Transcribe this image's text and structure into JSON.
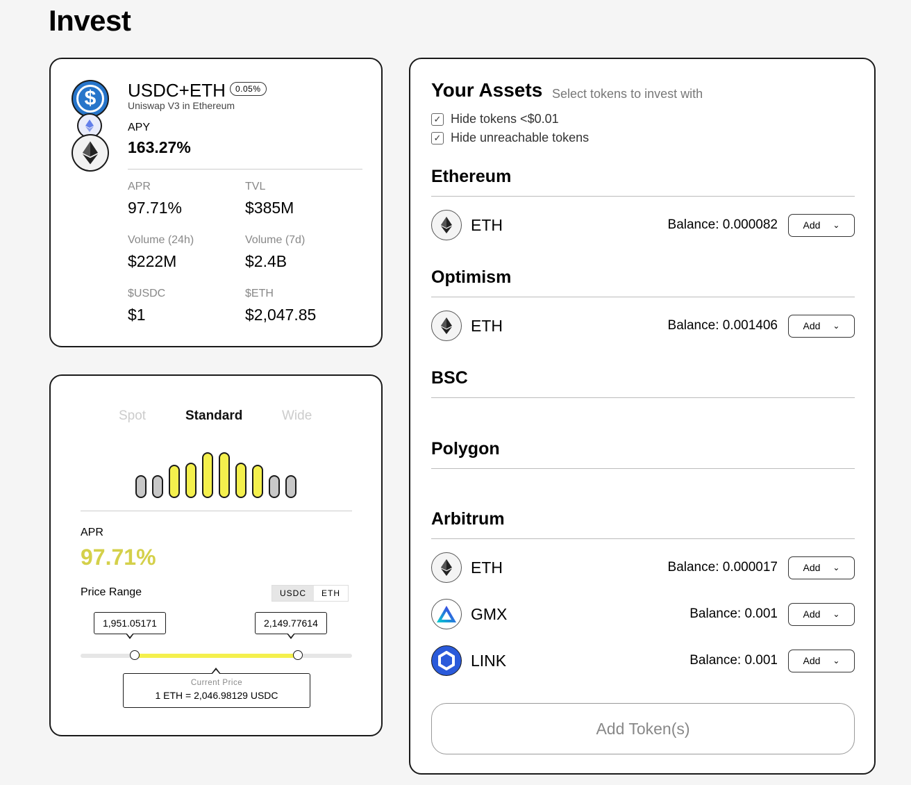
{
  "page": {
    "title": "Invest"
  },
  "pool": {
    "name": "USDC+ETH",
    "fee": "0.05%",
    "subtitle": "Uniswap V3 in Ethereum",
    "apy_label": "APY",
    "apy_value": "163.27%",
    "stats": [
      {
        "label": "APR",
        "value": "97.71%"
      },
      {
        "label": "TVL",
        "value": "$385M"
      },
      {
        "label": "Volume (24h)",
        "value": "$222M"
      },
      {
        "label": "Volume (7d)",
        "value": "$2.4B"
      },
      {
        "label": "$USDC",
        "value": "$1"
      },
      {
        "label": "$ETH",
        "value": "$2,047.85"
      }
    ],
    "icons": [
      "usdc-icon",
      "eth-icon"
    ]
  },
  "range": {
    "tabs": [
      {
        "label": "Spot",
        "active": false
      },
      {
        "label": "Standard",
        "active": true
      },
      {
        "label": "Wide",
        "active": false
      }
    ],
    "distribution": [
      {
        "level": 0.5,
        "in_range": false
      },
      {
        "level": 0.5,
        "in_range": false
      },
      {
        "level": 0.72,
        "in_range": true
      },
      {
        "level": 0.78,
        "in_range": true
      },
      {
        "level": 1.0,
        "in_range": true
      },
      {
        "level": 1.0,
        "in_range": true
      },
      {
        "level": 0.78,
        "in_range": true
      },
      {
        "level": 0.72,
        "in_range": true
      },
      {
        "level": 0.5,
        "in_range": false
      },
      {
        "level": 0.5,
        "in_range": false
      }
    ],
    "apr_label": "APR",
    "apr_value": "97.71%",
    "price_range_label": "Price Range",
    "toggle": [
      {
        "label": "USDC",
        "active": true
      },
      {
        "label": "ETH",
        "active": false
      }
    ],
    "min_price": "1,951.05171",
    "max_price": "2,149.77614",
    "min_fraction": 0.2,
    "max_fraction": 0.8,
    "current_price_label": "Current Price",
    "current_price_value": "1 ETH = 2,046.98129 USDC",
    "accent": "#f4f04d",
    "apr_color": "#d4d04a"
  },
  "assets": {
    "title": "Your Assets",
    "subtitle": "Select tokens to invest with",
    "filters": [
      {
        "label": "Hide tokens <$0.01",
        "checked": true
      },
      {
        "label": "Hide unreachable tokens",
        "checked": true
      }
    ],
    "add_label": "Add",
    "chains": {
      "ethereum": {
        "name": "Ethereum",
        "tokens": [
          {
            "symbol": "ETH",
            "balance": "Balance: 0.000082",
            "icon": "eth-icon"
          }
        ]
      },
      "optimism": {
        "name": "Optimism",
        "tokens": [
          {
            "symbol": "ETH",
            "balance": "Balance: 0.001406",
            "icon": "eth-icon"
          }
        ]
      },
      "bsc": {
        "name": "BSC",
        "tokens": []
      },
      "polygon": {
        "name": "Polygon",
        "tokens": []
      },
      "arbitrum": {
        "name": "Arbitrum",
        "tokens": [
          {
            "symbol": "ETH",
            "balance": "Balance: 0.000017",
            "icon": "eth-icon"
          },
          {
            "symbol": "GMX",
            "balance": "Balance: 0.001",
            "icon": "gmx-icon"
          },
          {
            "symbol": "LINK",
            "balance": "Balance: 0.001",
            "icon": "link-icon"
          }
        ]
      }
    },
    "submit_label": "Add Token(s)"
  }
}
